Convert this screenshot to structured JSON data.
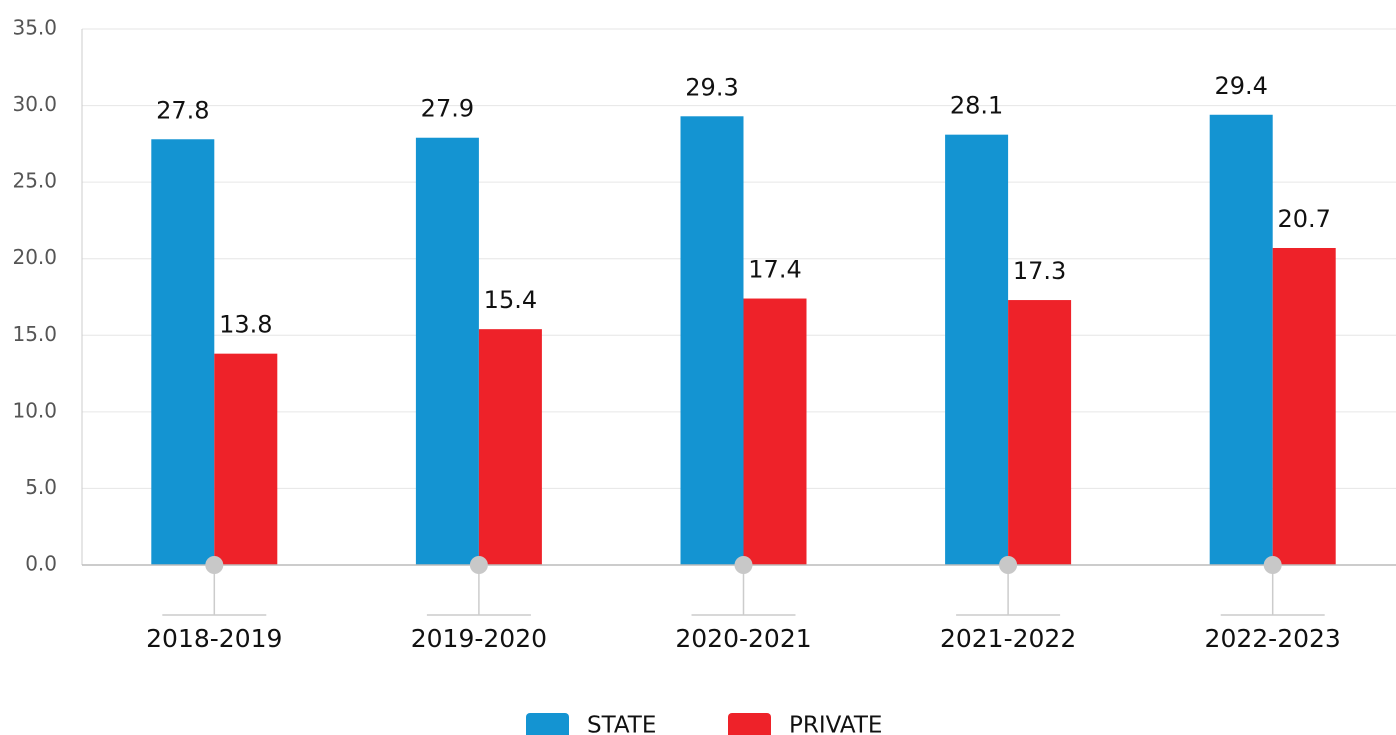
{
  "chart_data": {
    "type": "bar",
    "categories": [
      "2018-2019",
      "2019-2020",
      "2020-2021",
      "2021-2022",
      "2022-2023"
    ],
    "series": [
      {
        "name": "STATE",
        "color": "#1494d2",
        "values": [
          27.8,
          27.9,
          29.3,
          28.1,
          29.4
        ]
      },
      {
        "name": "PRIVATE",
        "color": "#ee2229",
        "values": [
          13.8,
          15.4,
          17.4,
          17.3,
          20.7
        ]
      }
    ],
    "ylim": [
      0,
      35
    ],
    "yticks": [
      {
        "value": 0,
        "label": "0.0"
      },
      {
        "value": 5,
        "label": "5.0"
      },
      {
        "value": 10,
        "label": "10.0"
      },
      {
        "value": 15,
        "label": "15.0"
      },
      {
        "value": 20,
        "label": "20.0"
      },
      {
        "value": 25,
        "label": "25.0"
      },
      {
        "value": 30,
        "label": "30.0"
      },
      {
        "value": 35,
        "label": "35.0"
      }
    ],
    "grid": true,
    "legend": "bottom"
  }
}
